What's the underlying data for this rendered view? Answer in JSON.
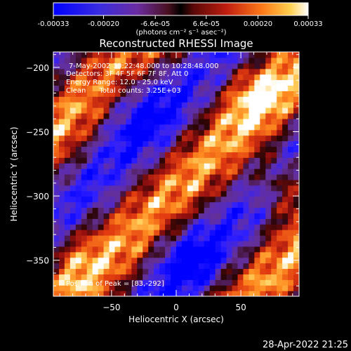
{
  "colorbar": {
    "tick_labels": [
      "-0.00033",
      "-0.00020",
      "-6.6e-05",
      "6.6e-05",
      "0.00020",
      "0.00033"
    ],
    "tick_values": [
      -0.00033,
      -0.0002,
      -6.6e-05,
      6.6e-05,
      0.0002,
      0.00033
    ],
    "range": [
      -0.00033,
      0.00033
    ],
    "unit_label": "(photons cm⁻² s⁻¹ asec⁻²)"
  },
  "chart_data": {
    "type": "heatmap",
    "title": "Reconstructed RHESSI Image",
    "xlabel": "Heliocentric X (arcsec)",
    "ylabel": "Heliocentric Y (arcsec)",
    "xlim": [
      -95,
      95
    ],
    "ylim": [
      -378,
      -188
    ],
    "x_ticks": [
      -50,
      0,
      50
    ],
    "x_tick_labels": [
      "−50",
      "0",
      "50"
    ],
    "y_ticks": [
      -200,
      -250,
      -300,
      -350
    ],
    "y_tick_labels": [
      "−200",
      "−250",
      "−300",
      "−350"
    ],
    "annotations": [
      "7-May-2002 10:22:48.000 to 10:28:48.000",
      "Detectors: 3F 4F 5F 6F 7F 8F, Att 0",
      "Energy Range: 12.0 - 25.0 keV",
      "Clean      Total counts: 3.25E+03"
    ],
    "peak_label": "Position of Peak = [83,-292]",
    "peak": [
      83,
      -292
    ],
    "pattern": "diagonal alternating positive/negative stripes running from upper-left to lower-right"
  },
  "timestamp": "28-Apr-2022 21:25",
  "colors": {
    "background": "#000000",
    "foreground": "#ffffff",
    "colormap": [
      "#0000ff",
      "#3020ff",
      "#5a2cb6",
      "#6a3396",
      "#3a0a0a",
      "#a01010",
      "#e03a10",
      "#ff8a20",
      "#ffd060",
      "#ffffff"
    ]
  }
}
